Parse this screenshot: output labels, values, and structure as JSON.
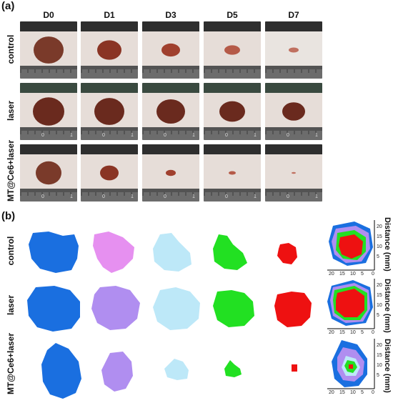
{
  "panel_a": {
    "label": "(a)",
    "columns": [
      "D0",
      "D1",
      "D3",
      "D5",
      "D7"
    ],
    "rows": [
      "control",
      "laser",
      "MT@Ce6+laser"
    ],
    "ruler_numbers": [
      "0",
      "1"
    ]
  },
  "panel_b": {
    "label": "(b)",
    "rows": [
      "control",
      "laser",
      "MT@Ce6+laser"
    ],
    "overlay_axis_label": "Distance (mm)",
    "x_ticks": [
      "20",
      "15",
      "10",
      "5",
      "0"
    ],
    "y_ticks": [
      "20",
      "15",
      "10",
      "5"
    ],
    "colors": {
      "D0": "#1a6fe0",
      "D1_control": "#e690f0",
      "D1": "#b08ef0",
      "D3": "#bde8f8",
      "D5": "#22e022",
      "D7": "#ee1111"
    }
  }
}
